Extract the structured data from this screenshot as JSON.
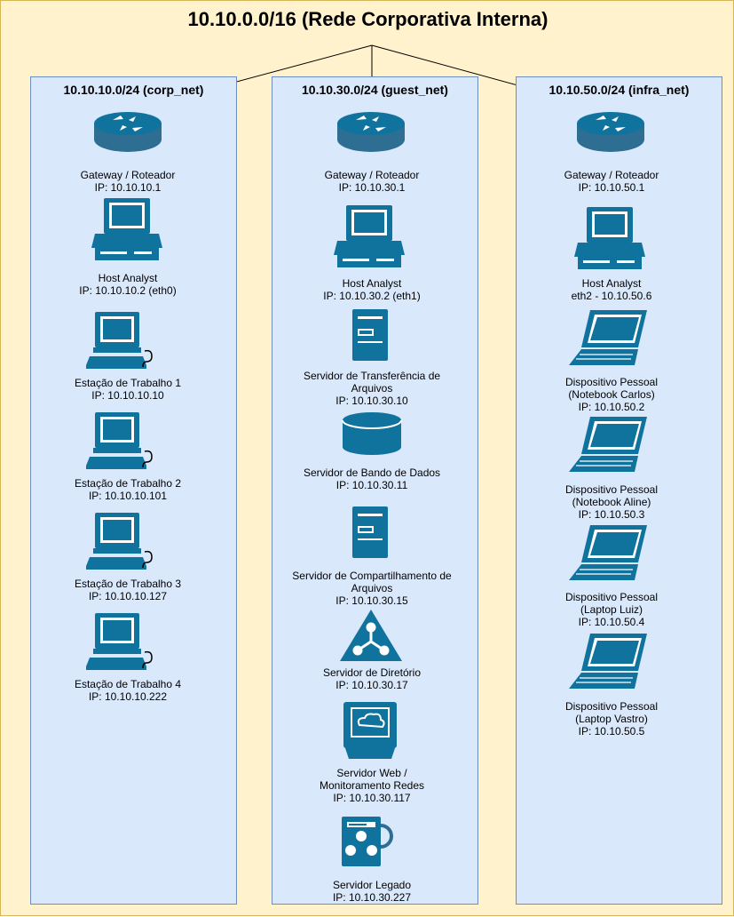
{
  "title": "10.10.0.0/16 (Rede Corporativa Interna)",
  "colors": {
    "background": "#fff2cc",
    "panel": "#dae8fc",
    "panel_border": "#6c8ebf",
    "icon": "#10739e",
    "router": "#2e6e93"
  },
  "subnets": [
    {
      "title": "10.10.10.0/24 (corp_net)",
      "devices": [
        {
          "icon": "router-icon",
          "lines": [
            "Gateway / Roteador",
            "IP: 10.10.10.1"
          ]
        },
        {
          "icon": "desktop-computer-icon",
          "lines": [
            "Host Analyst",
            "IP: 10.10.10.2 (eth0)"
          ]
        },
        {
          "icon": "workstation-icon",
          "lines": [
            "Estação de Trabalho 1",
            "IP: 10.10.10.10"
          ]
        },
        {
          "icon": "workstation-icon",
          "lines": [
            "Estação de Trabalho 2",
            "IP: 10.10.10.101"
          ]
        },
        {
          "icon": "workstation-icon",
          "lines": [
            "Estação de Trabalho 3",
            "IP: 10.10.10.127"
          ]
        },
        {
          "icon": "workstation-icon",
          "lines": [
            "Estação de Trabalho 4",
            "IP: 10.10.10.222"
          ]
        }
      ]
    },
    {
      "title": "10.10.30.0/24  (guest_net)",
      "devices": [
        {
          "icon": "router-icon",
          "lines": [
            "Gateway / Roteador",
            "IP: 10.10.30.1"
          ]
        },
        {
          "icon": "desktop-computer-icon",
          "lines": [
            "Host Analyst",
            "IP: 10.10.30.2 (eth1)"
          ]
        },
        {
          "icon": "server-tower-icon",
          "lines": [
            "Servidor de Transferência de",
            "Arquivos",
            "IP: 10.10.30.10"
          ]
        },
        {
          "icon": "database-icon",
          "lines": [
            "Servidor de Bando de Dados",
            "IP: 10.10.30.11"
          ]
        },
        {
          "icon": "server-tower-icon",
          "lines": [
            "Servidor de Compartilhamento de",
            "Arquivos",
            "IP: 10.10.30.15"
          ]
        },
        {
          "icon": "directory-server-icon",
          "lines": [
            "Servidor de Diretório",
            "IP: 10.10.30.17"
          ]
        },
        {
          "icon": "web-monitor-icon",
          "lines": [
            "Servidor Web /",
            "Monitoramento Redes",
            "IP: 10.10.30.117"
          ]
        },
        {
          "icon": "legacy-server-icon",
          "lines": [
            "Servidor Legado",
            "IP: 10.10.30.227"
          ]
        }
      ]
    },
    {
      "title": "10.10.50.0/24 (infra_net)",
      "devices": [
        {
          "icon": "router-icon",
          "lines": [
            "Gateway / Roteador",
            "IP: 10.10.50.1"
          ]
        },
        {
          "icon": "desktop-computer-icon",
          "lines": [
            "Host Analyst",
            "eth2 - 10.10.50.6"
          ]
        },
        {
          "icon": "laptop-icon",
          "lines": [
            "Dispositivo Pessoal",
            "(Notebook Carlos)",
            "IP: 10.10.50.2"
          ]
        },
        {
          "icon": "laptop-icon",
          "lines": [
            "Dispositivo Pessoal",
            "(Notebook Aline)",
            "IP: 10.10.50.3"
          ]
        },
        {
          "icon": "laptop-icon",
          "lines": [
            "Dispositivo Pessoal",
            "(Laptop Luiz)",
            "IP: 10.10.50.4"
          ]
        },
        {
          "icon": "laptop-icon",
          "lines": [
            "Dispositivo Pessoal",
            "(Laptop Vastro)",
            "IP: 10.10.50.5"
          ]
        }
      ]
    }
  ]
}
